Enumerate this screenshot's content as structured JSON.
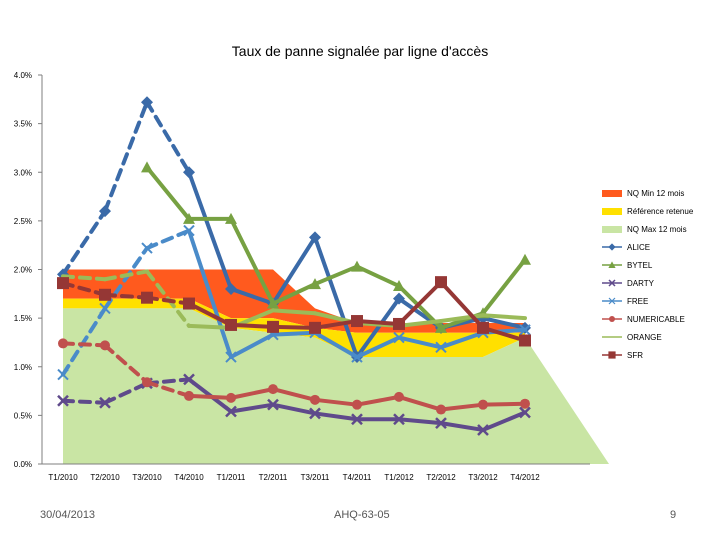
{
  "chart_data": {
    "type": "line",
    "title": "Taux de panne signalée par ligne d'accès",
    "xlabel": "",
    "ylabel": "",
    "ylim": [
      0,
      4
    ],
    "y_ticks": [
      "0.0%",
      "0.5%",
      "1.0%",
      "1.5%",
      "2.0%",
      "2.5%",
      "3.0%",
      "3.5%",
      "4.0%"
    ],
    "categories": [
      "T1/2010",
      "T2/2010",
      "T3/2010",
      "T4/2010",
      "T1/2011",
      "T2/2011",
      "T3/2011",
      "T4/2011",
      "T1/2012",
      "T2/2012",
      "T3/2012",
      "T4/2012"
    ],
    "areas": [
      {
        "name": "NQ Min 12 mois",
        "color": "#ff5a1e",
        "top": [
          2.0,
          2.0,
          2.0,
          2.0,
          2.0,
          2.0,
          1.6,
          1.45,
          1.45,
          1.45,
          1.45,
          1.45
        ],
        "bottom": [
          1.7,
          1.7,
          1.7,
          1.7,
          1.5,
          1.5,
          1.4,
          1.35,
          1.35,
          1.35,
          1.35,
          1.35
        ]
      },
      {
        "name": "Référence retenue",
        "color": "#ffe000",
        "top": [
          1.7,
          1.7,
          1.7,
          1.7,
          1.5,
          1.5,
          1.4,
          1.35,
          1.35,
          1.35,
          1.35,
          1.35
        ],
        "bottom": [
          1.6,
          1.6,
          1.6,
          1.6,
          1.4,
          1.35,
          1.3,
          1.1,
          1.1,
          1.1,
          1.1,
          1.3
        ]
      },
      {
        "name": "NQ Max 12 mois",
        "color": "#c9e5a4",
        "top": [
          1.6,
          1.6,
          1.6,
          1.6,
          1.4,
          1.35,
          1.3,
          1.1,
          1.1,
          1.1,
          1.1,
          1.3
        ],
        "bottom": [
          0,
          0,
          0,
          0,
          0,
          0,
          0,
          0,
          0,
          0,
          0,
          0
        ],
        "extends_to_zero_at": 13
      }
    ],
    "series": [
      {
        "name": "ALICE",
        "color": "#3a6aa8",
        "marker": "diamond",
        "values": [
          1.95,
          2.6,
          3.72,
          3.0,
          1.8,
          1.65,
          2.33,
          1.1,
          1.7,
          1.4,
          1.5,
          1.4
        ],
        "dashed_until": 3
      },
      {
        "name": "BYTEL",
        "color": "#77a142",
        "marker": "triangle",
        "values": [
          null,
          null,
          3.05,
          2.52,
          2.52,
          1.65,
          1.85,
          2.03,
          1.83,
          1.4,
          1.55,
          2.1
        ],
        "dashed_until": 2
      },
      {
        "name": "DARTY",
        "color": "#5f4a8b",
        "marker": "x",
        "values": [
          0.65,
          0.63,
          0.83,
          0.87,
          0.54,
          0.61,
          0.52,
          0.46,
          0.46,
          0.42,
          0.35,
          0.53
        ],
        "dashed_until": 3
      },
      {
        "name": "FREE",
        "color": "#4a8bc9",
        "marker": "cross",
        "values": [
          0.92,
          1.6,
          2.22,
          2.4,
          1.1,
          1.33,
          1.35,
          1.1,
          1.3,
          1.2,
          1.35,
          1.38
        ],
        "dashed_until": 3
      },
      {
        "name": "NUMERICABLE",
        "color": "#c0504d",
        "marker": "circle",
        "values": [
          1.24,
          1.22,
          0.84,
          0.7,
          0.68,
          0.77,
          0.66,
          0.61,
          0.69,
          0.56,
          0.61,
          0.62
        ],
        "dashed_until": 3
      },
      {
        "name": "ORANGE",
        "color": "#9bbb59",
        "marker": "none",
        "values": [
          1.93,
          1.9,
          1.98,
          1.42,
          1.4,
          1.58,
          1.55,
          1.45,
          1.42,
          1.47,
          1.53,
          1.5
        ],
        "dashed_until": 3
      },
      {
        "name": "SFR",
        "color": "#953735",
        "marker": "square",
        "values": [
          1.86,
          1.74,
          1.71,
          1.65,
          1.43,
          1.41,
          1.4,
          1.47,
          1.44,
          1.87,
          1.4,
          1.27
        ],
        "dashed_until": 3
      }
    ]
  },
  "footer": {
    "date": "30/04/2013",
    "ref": "AHQ-63-05",
    "page": "9"
  }
}
